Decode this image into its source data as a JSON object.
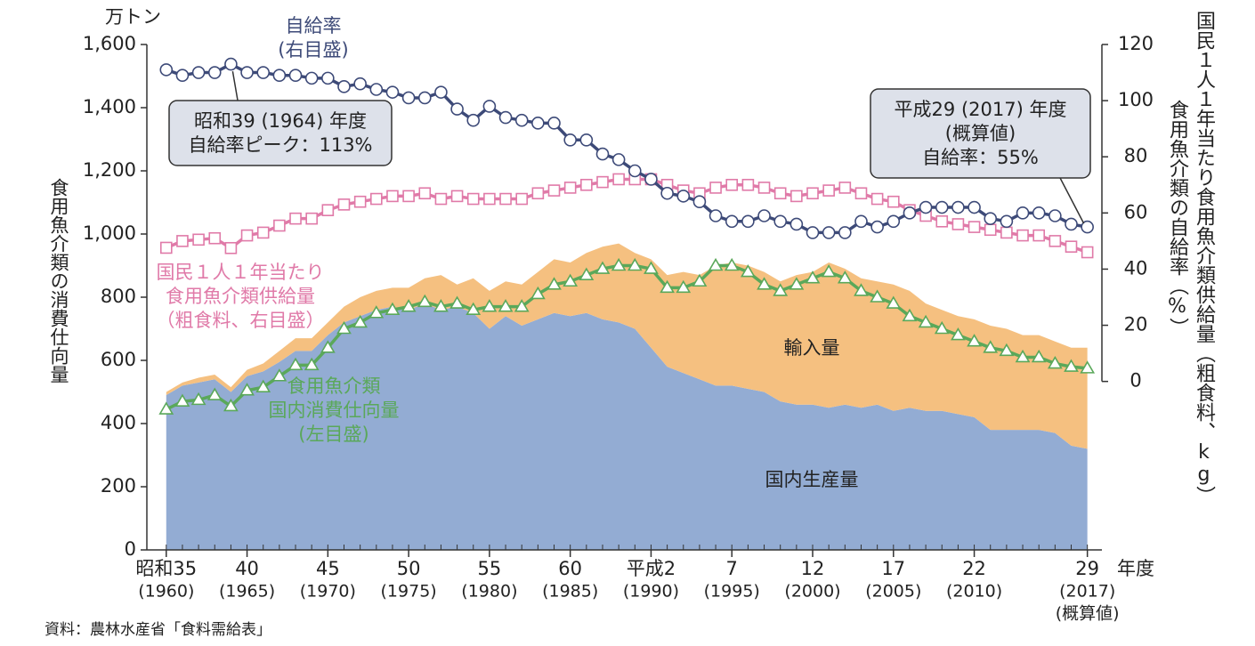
{
  "chart_data": {
    "type": "area-line",
    "y_unit": "万トン",
    "x_unit": "年度",
    "ylabel": "食用魚介類の消費仕向量",
    "y2labels": [
      "国民１人１年当たり食用魚介類供給量（粗食料、kg）",
      "食用魚介類の自給率（%）"
    ],
    "source": "資料：農林水産省「食料需給表」",
    "x": [
      1960,
      1961,
      1962,
      1963,
      1964,
      1965,
      1966,
      1967,
      1968,
      1969,
      1970,
      1971,
      1972,
      1973,
      1974,
      1975,
      1976,
      1977,
      1978,
      1979,
      1980,
      1981,
      1982,
      1983,
      1984,
      1985,
      1986,
      1987,
      1988,
      1989,
      1990,
      1991,
      1992,
      1993,
      1994,
      1995,
      1996,
      1997,
      1998,
      1999,
      2000,
      2001,
      2002,
      2003,
      2004,
      2005,
      2006,
      2007,
      2008,
      2009,
      2010,
      2011,
      2012,
      2013,
      2014,
      2015,
      2016,
      2017
    ],
    "xlim": [
      1958.8,
      2017.9
    ],
    "xticks": [
      {
        "value": 1960,
        "label": [
          "昭和35",
          "(1960)"
        ]
      },
      {
        "value": 1965,
        "label": [
          "40",
          "(1965)"
        ]
      },
      {
        "value": 1970,
        "label": [
          "45",
          "(1970)"
        ]
      },
      {
        "value": 1975,
        "label": [
          "50",
          "(1975)"
        ]
      },
      {
        "value": 1980,
        "label": [
          "55",
          "(1980)"
        ]
      },
      {
        "value": 1985,
        "label": [
          "60",
          "(1985)"
        ]
      },
      {
        "value": 1990,
        "label": [
          "平成2",
          "(1990)"
        ]
      },
      {
        "value": 1995,
        "label": [
          "7",
          "(1995)"
        ]
      },
      {
        "value": 2000,
        "label": [
          "12",
          "(2000)"
        ]
      },
      {
        "value": 2005,
        "label": [
          "17",
          "(2005)"
        ]
      },
      {
        "value": 2010,
        "label": [
          "22",
          "(2010)"
        ]
      },
      {
        "value": 2017,
        "label": [
          "29",
          "(2017)",
          "(概算値)"
        ]
      }
    ],
    "ylim": [
      0,
      1600
    ],
    "yticks": [
      0,
      200,
      400,
      600,
      800,
      {
        "value": 1000,
        "label": "1,000"
      },
      {
        "value": 1200,
        "label": "1,200"
      },
      {
        "value": 1400,
        "label": "1,400"
      },
      {
        "value": 1600,
        "label": "1,600"
      }
    ],
    "y2lim": [
      -60,
      120
    ],
    "y2ticks": [
      0,
      20,
      40,
      60,
      80,
      100,
      120
    ],
    "series": [
      {
        "name": [
          "国内生産量"
        ],
        "kind": "area",
        "color": "#93acd3",
        "values": [
          490,
          520,
          530,
          540,
          500,
          550,
          565,
          595,
          630,
          630,
          680,
          720,
          740,
          760,
          770,
          760,
          780,
          760,
          770,
          750,
          700,
          740,
          710,
          730,
          750,
          740,
          750,
          730,
          720,
          700,
          640,
          580,
          560,
          540,
          520,
          520,
          510,
          500,
          470,
          460,
          460,
          450,
          460,
          450,
          460,
          440,
          450,
          440,
          440,
          430,
          420,
          380,
          380,
          380,
          380,
          370,
          330,
          320
        ]
      },
      {
        "name": [
          "輸入量"
        ],
        "kind": "area",
        "stacked": true,
        "color": "#f5c080",
        "values": [
          10,
          10,
          15,
          15,
          15,
          20,
          25,
          35,
          40,
          40,
          40,
          50,
          60,
          60,
          60,
          70,
          80,
          110,
          70,
          110,
          120,
          110,
          130,
          150,
          170,
          170,
          190,
          230,
          250,
          240,
          280,
          290,
          320,
          330,
          380,
          390,
          390,
          380,
          380,
          410,
          420,
          460,
          430,
          410,
          390,
          400,
          370,
          340,
          320,
          310,
          310,
          330,
          320,
          300,
          300,
          290,
          310,
          320
        ]
      },
      {
        "name": [
          "食用魚介類",
          "国内消費仕向量",
          "(左目盛)"
        ],
        "kind": "line",
        "marker": "triangle",
        "color": "#5aa85a",
        "values": [
          445,
          470,
          475,
          490,
          455,
          505,
          515,
          550,
          585,
          585,
          640,
          700,
          720,
          750,
          760,
          770,
          785,
          770,
          780,
          760,
          770,
          770,
          770,
          810,
          840,
          850,
          870,
          890,
          900,
          900,
          890,
          830,
          830,
          850,
          900,
          900,
          880,
          840,
          820,
          840,
          860,
          880,
          860,
          820,
          800,
          780,
          740,
          720,
          700,
          680,
          660,
          640,
          630,
          610,
          610,
          590,
          580,
          575
        ]
      },
      {
        "name": [
          "国民１人１年当たり",
          "食用魚介類供給量",
          "（粗食料、右目盛）"
        ],
        "kind": "line",
        "marker": "square",
        "axis": "y2",
        "color": "#e07aa8",
        "values": [
          47.6,
          50,
          50.5,
          51,
          47.5,
          52,
          53,
          55.5,
          58,
          58,
          61,
          63,
          64,
          65,
          66,
          66,
          67,
          65,
          66,
          65,
          65,
          65,
          65,
          67,
          68,
          69,
          70,
          71,
          72,
          72,
          72,
          70,
          68,
          67,
          69,
          70,
          70,
          69,
          67,
          66,
          67,
          68,
          69,
          67,
          65,
          64,
          61,
          59,
          57,
          56,
          55,
          54,
          53,
          52,
          52,
          50,
          48,
          46
        ]
      },
      {
        "name": [
          "自給率",
          "(右目盛)"
        ],
        "kind": "line",
        "marker": "circle",
        "axis": "y2",
        "color": "#3d4a78",
        "values": [
          111,
          109,
          110,
          110,
          113,
          110,
          110,
          109,
          109,
          108,
          108,
          105,
          106,
          104,
          103,
          101,
          101,
          103,
          97,
          93,
          98,
          94,
          93,
          92,
          92,
          86,
          86,
          81,
          79,
          75,
          72,
          67,
          66,
          64,
          59,
          57,
          57,
          59,
          57,
          56,
          53,
          53,
          53,
          57,
          55,
          57,
          60,
          62,
          62,
          62,
          62,
          58,
          57,
          60,
          60,
          59,
          56,
          55
        ]
      }
    ],
    "annotations": [
      {
        "lines": [
          "昭和39 (1964) 年度",
          "自給率ピーク：113%"
        ],
        "x": 1964,
        "series": 4
      },
      {
        "lines": [
          "平成29 (2017) 年度",
          "(概算値)",
          "自給率：55%"
        ],
        "x": 2017,
        "series": 4
      }
    ]
  }
}
